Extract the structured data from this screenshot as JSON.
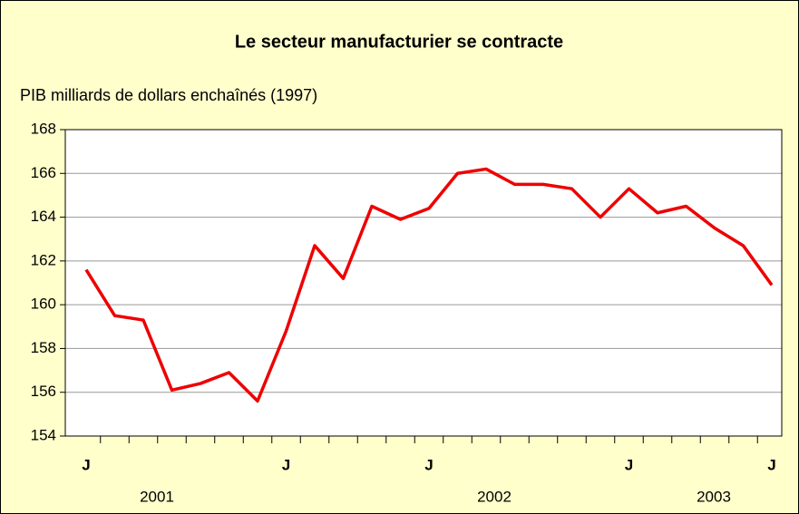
{
  "chart_data": {
    "type": "line",
    "title": "Le secteur manufacturier se contracte",
    "y_label": "PIB milliards de dollars enchaînés (1997)",
    "categories": [
      "J",
      null,
      null,
      null,
      null,
      null,
      null,
      "J",
      null,
      null,
      null,
      null,
      "J",
      null,
      null,
      null,
      null,
      null,
      null,
      "J",
      null,
      null,
      null,
      null,
      "J"
    ],
    "year_labels": [
      "2001",
      "2002",
      "2003"
    ],
    "series": [
      {
        "name": "PIB",
        "color": "#ee0000",
        "values": [
          161.6,
          159.5,
          159.3,
          156.1,
          156.4,
          156.9,
          155.6,
          158.8,
          162.7,
          161.2,
          164.5,
          163.9,
          164.4,
          166.0,
          166.2,
          165.5,
          165.5,
          165.3,
          164.0,
          165.3,
          164.2,
          164.5,
          163.5,
          162.7,
          160.9
        ]
      }
    ],
    "ylim": [
      154,
      168
    ],
    "yticks": [
      154,
      156,
      158,
      160,
      162,
      164,
      166,
      168
    ],
    "grid": true
  }
}
